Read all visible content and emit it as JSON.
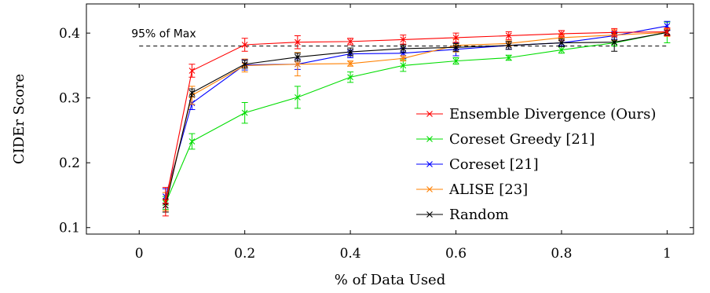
{
  "chart_data": {
    "type": "line",
    "title": "",
    "xlabel": "% of Data Used",
    "ylabel": "CIDEr Score",
    "xlim": [
      -0.1,
      1.05
    ],
    "ylim": [
      0.09,
      0.445
    ],
    "xticks": [
      0,
      0.2,
      0.4,
      0.6,
      0.8,
      1
    ],
    "xtick_labels": [
      "0",
      "0.2",
      "0.4",
      "0.6",
      "0.8",
      "1"
    ],
    "yticks": [
      0.1,
      0.2,
      0.3,
      0.4
    ],
    "ytick_labels": [
      "0.1",
      "0.2",
      "0.3",
      "0.4"
    ],
    "grid": false,
    "legend_position": "lower-right",
    "reference_line": {
      "y": 0.38,
      "x_range": [
        0,
        1
      ],
      "style": "dashed",
      "label": "95% of Max"
    },
    "x": [
      0.05,
      0.1,
      0.2,
      0.3,
      0.4,
      0.5,
      0.6,
      0.7,
      0.8,
      0.9,
      1.0
    ],
    "series": [
      {
        "name": "Ensemble Divergence (Ours)",
        "color": "#ff0000",
        "values": [
          0.14,
          0.342,
          0.382,
          0.386,
          0.387,
          0.39,
          0.393,
          0.396,
          0.399,
          0.401,
          0.402
        ],
        "errors": [
          0.022,
          0.01,
          0.01,
          0.01,
          0.005,
          0.007,
          0.007,
          0.006,
          0.005,
          0.006,
          0.006
        ]
      },
      {
        "name": "Coreset Greedy [21]",
        "color": "#00dd00",
        "values": [
          0.138,
          0.233,
          0.277,
          0.301,
          0.332,
          0.35,
          0.357,
          0.362,
          0.374,
          0.385,
          0.401
        ],
        "errors": [
          0.01,
          0.012,
          0.016,
          0.017,
          0.008,
          0.009,
          0.005,
          0.004,
          0.005,
          0.005,
          0.016
        ]
      },
      {
        "name": "Coreset [21]",
        "color": "#0000ff",
        "values": [
          0.148,
          0.292,
          0.351,
          0.352,
          0.368,
          0.369,
          0.375,
          0.381,
          0.385,
          0.396,
          0.411
        ],
        "errors": [
          0.012,
          0.01,
          0.008,
          0.008,
          0.006,
          0.008,
          0.01,
          0.006,
          0.004,
          0.006,
          0.007
        ]
      },
      {
        "name": "ALISE [23]",
        "color": "#ff8000",
        "values": [
          0.14,
          0.304,
          0.35,
          0.352,
          0.353,
          0.361,
          0.381,
          0.384,
          0.393,
          0.397,
          0.401
        ],
        "errors": [
          0.014,
          0.014,
          0.01,
          0.018,
          0.004,
          0.004,
          0.01,
          0.004,
          0.005,
          0.008,
          0.006
        ]
      },
      {
        "name": "Random",
        "color": "#000000",
        "values": [
          0.134,
          0.308,
          0.352,
          0.363,
          0.371,
          0.376,
          0.378,
          0.381,
          0.385,
          0.386,
          0.401
        ],
        "errors": [
          0.01,
          0.006,
          0.006,
          0.006,
          0.006,
          0.006,
          0.006,
          0.006,
          0.006,
          0.014,
          0.004
        ]
      }
    ]
  }
}
